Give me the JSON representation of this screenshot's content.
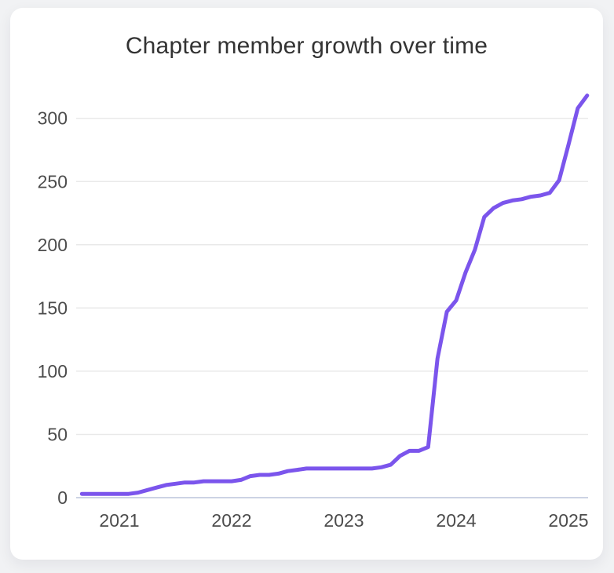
{
  "card": {
    "title": "Chapter member growth over time"
  },
  "chart_data": {
    "type": "line",
    "title": "Chapter member growth over time",
    "xlabel": "",
    "ylabel": "",
    "x_ticks": [
      2021,
      2022,
      2023,
      2024,
      2025
    ],
    "y_ticks": [
      0,
      50,
      100,
      150,
      200,
      250,
      300
    ],
    "xlim": [
      2020.67,
      2025.17
    ],
    "ylim": [
      0,
      325
    ],
    "grid": true,
    "legend": false,
    "series": [
      {
        "months": [
          "2020-09",
          "2020-10",
          "2020-11",
          "2020-12",
          "2021-01",
          "2021-02",
          "2021-03",
          "2021-04",
          "2021-05",
          "2021-06",
          "2021-07",
          "2021-08",
          "2021-09",
          "2021-10",
          "2021-11",
          "2021-12",
          "2022-01",
          "2022-02",
          "2022-03",
          "2022-04",
          "2022-05",
          "2022-06",
          "2022-07",
          "2022-08",
          "2022-09",
          "2022-10",
          "2022-11",
          "2022-12",
          "2023-01",
          "2023-02",
          "2023-03",
          "2023-04",
          "2023-05",
          "2023-06",
          "2023-07",
          "2023-08",
          "2023-09",
          "2023-10",
          "2023-11",
          "2023-12",
          "2024-01",
          "2024-02",
          "2024-03",
          "2024-04",
          "2024-05",
          "2024-06",
          "2024-07",
          "2024-08",
          "2024-09",
          "2024-10",
          "2024-11",
          "2024-12",
          "2025-01",
          "2025-02",
          "2025-03"
        ],
        "values": [
          3,
          3,
          3,
          3,
          3,
          3,
          4,
          6,
          8,
          10,
          11,
          12,
          12,
          13,
          13,
          13,
          13,
          14,
          17,
          18,
          18,
          19,
          21,
          22,
          23,
          23,
          23,
          23,
          23,
          23,
          23,
          23,
          24,
          26,
          33,
          37,
          37,
          40,
          110,
          147,
          156,
          178,
          196,
          222,
          229,
          233,
          235,
          236,
          238,
          239,
          241,
          251,
          279,
          308,
          318
        ]
      }
    ],
    "colors": {
      "line": "#7b55ec",
      "grid": "#e9e9e9",
      "zero_axis": "#ccd3e4",
      "tick_text": "#4c4c4c",
      "title_text": "#333333",
      "card_bg": "#ffffff",
      "page_bg": "#f1f2f4"
    }
  }
}
